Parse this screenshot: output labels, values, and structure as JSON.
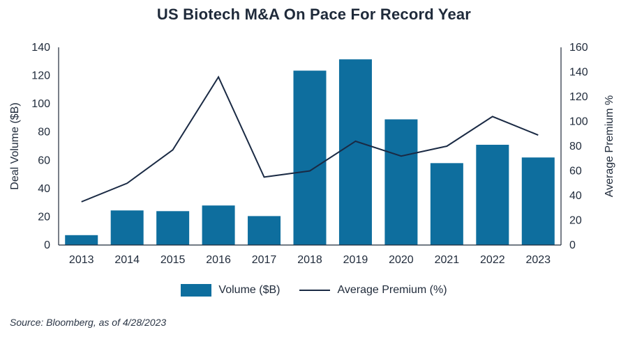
{
  "chart_data": {
    "type": "bar",
    "title": "US Biotech M&A On Pace For Record Year",
    "categories": [
      "2013",
      "2014",
      "2015",
      "2016",
      "2017",
      "2018",
      "2019",
      "2020",
      "2021",
      "2022",
      "2023"
    ],
    "series": [
      {
        "name": "Volume ($B)",
        "kind": "bar",
        "axis": "left",
        "values": [
          7,
          24.5,
          24,
          28,
          20.5,
          123.5,
          131.5,
          89,
          58,
          71,
          62
        ]
      },
      {
        "name": "Average Premium (%)",
        "kind": "line",
        "axis": "right",
        "values": [
          35,
          50,
          77,
          136,
          55,
          60,
          84,
          72,
          80,
          104,
          89
        ]
      }
    ],
    "ylabel": "Deal Volume ($B)",
    "ylabel_right": "Average Premium %",
    "ylim": [
      0,
      140
    ],
    "ylim_right": [
      0,
      160
    ],
    "yticks": [
      0,
      20,
      40,
      60,
      80,
      100,
      120,
      140
    ],
    "yticks_right": [
      0,
      20,
      40,
      60,
      80,
      100,
      120,
      140,
      160
    ],
    "grid": false,
    "legend_position": "bottom",
    "colors": {
      "bar": "#0e6e9e",
      "line": "#1a2a44",
      "axis": "#1f2a3a"
    }
  },
  "source": "Source: Bloomberg, as of 4/28/2023"
}
